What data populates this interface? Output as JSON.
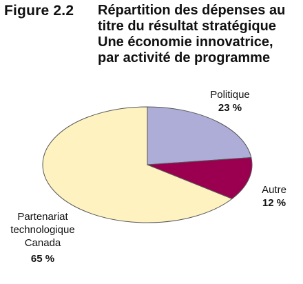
{
  "figure_label": "Figure 2.2",
  "chart_data": {
    "type": "pie",
    "title_lines": [
      "Répartition des dépenses au",
      "titre du résultat stratégique",
      "Une économie innovatrice,",
      "par activité de programme"
    ],
    "slices": [
      {
        "name_lines": [
          "Politique"
        ],
        "value": 23,
        "label": "23 %",
        "color": "#adadd8"
      },
      {
        "name_lines": [
          "Autre"
        ],
        "value": 12,
        "label": "12 %",
        "color": "#9b0050"
      },
      {
        "name_lines": [
          "Partenariat",
          "technologique",
          "Canada"
        ],
        "value": 65,
        "label": "65 %",
        "color": "#fdf2c0"
      }
    ],
    "start_angle_deg": 0,
    "direction": "clockwise",
    "edge_color": "#555555"
  }
}
